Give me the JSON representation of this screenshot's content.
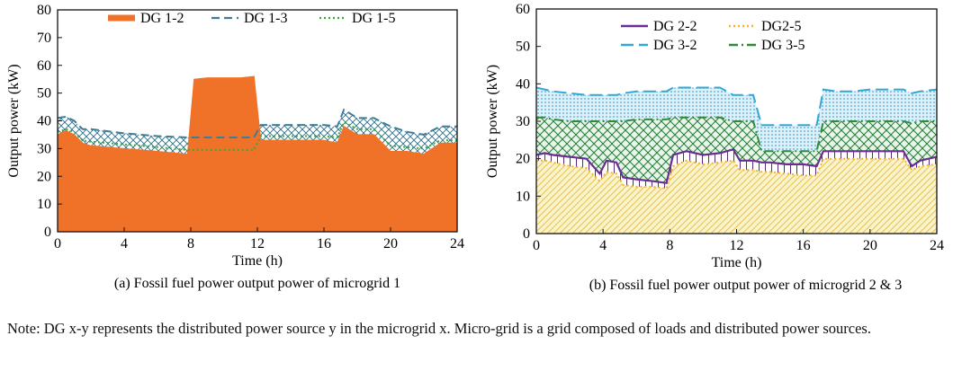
{
  "chart_data": [
    {
      "type": "area",
      "caption": "(a) Fossil fuel power output power of microgrid 1",
      "xlabel": "Time (h)",
      "ylabel": "Output power (kW)",
      "xlim": [
        0,
        24
      ],
      "ylim": [
        0,
        80
      ],
      "xticks": [
        0,
        4,
        8,
        12,
        16,
        20,
        24
      ],
      "yticks": [
        0,
        10,
        20,
        30,
        40,
        50,
        60,
        70,
        80
      ],
      "legend_position": "top",
      "grid": false,
      "x": [
        0,
        0.5,
        1,
        1.5,
        2,
        4,
        6,
        7.8,
        8.2,
        9,
        10,
        11,
        11.8,
        12.2,
        13,
        14,
        15,
        16,
        16.8,
        17.2,
        18,
        19,
        20,
        21,
        22,
        23,
        24
      ],
      "series": [
        {
          "name": "DG 1-2",
          "style": "solid-filled",
          "color": "#F07229",
          "values": [
            35,
            36.5,
            35,
            32,
            31,
            30,
            29,
            28,
            55,
            55.5,
            55.5,
            55.5,
            56,
            33,
            33,
            33,
            33,
            33,
            32,
            38,
            35,
            35,
            29,
            29,
            28,
            32,
            32
          ]
        },
        {
          "name": "DG 1-3",
          "style": "dashed",
          "color": "#3D7E96",
          "values": [
            41,
            41.5,
            40,
            37,
            37,
            35.5,
            34.5,
            34,
            34,
            34,
            34,
            34,
            34,
            38.5,
            38.5,
            38.5,
            38.5,
            38.5,
            38,
            44,
            41,
            41,
            38,
            36,
            35,
            38,
            38
          ]
        },
        {
          "name": "DG 1-5",
          "style": "dotted",
          "color": "#38A937",
          "values": [
            36,
            37,
            36,
            33,
            32.5,
            31.5,
            30.5,
            29.5,
            29.5,
            29.5,
            29.5,
            29.5,
            29.5,
            34.5,
            34.5,
            34.5,
            34.5,
            34.5,
            34,
            39.5,
            37,
            37,
            31,
            30.5,
            30,
            33,
            33
          ]
        }
      ]
    },
    {
      "type": "area",
      "caption": "(b) Fossil fuel power output power of microgrid 2 & 3",
      "xlabel": "Time (h)",
      "ylabel": "Output power (kW)",
      "xlim": [
        0,
        24
      ],
      "ylim": [
        0,
        60
      ],
      "xticks": [
        0,
        4,
        8,
        12,
        16,
        20,
        24
      ],
      "yticks": [
        0,
        10,
        20,
        30,
        40,
        50,
        60
      ],
      "legend_position": "top",
      "grid": false,
      "x": [
        0,
        0.5,
        1,
        2,
        3,
        3.8,
        4.2,
        4.8,
        5.2,
        6,
        7,
        7.8,
        8.2,
        9,
        10,
        11,
        11.8,
        12.2,
        13,
        13.5,
        14,
        15,
        16,
        16.8,
        17.2,
        18,
        19,
        20,
        21,
        22,
        22.5,
        23,
        24
      ],
      "series": [
        {
          "name": "DG 2-2",
          "style": "solid",
          "color": "#6A2E91",
          "values": [
            21,
            21.5,
            21,
            20.5,
            20,
            16,
            19.5,
            19,
            15,
            14.5,
            14,
            13.5,
            21,
            22,
            21,
            21.5,
            22.5,
            19.5,
            19.5,
            19,
            19,
            18.5,
            18.5,
            18,
            22,
            22,
            22,
            22,
            22,
            22,
            18,
            19.5,
            20.5
          ]
        },
        {
          "name": "DG2-5",
          "style": "dotted",
          "color": "#F4B42A",
          "values": [
            19.5,
            19.5,
            19,
            18,
            17.5,
            14,
            16.5,
            16,
            13,
            12.5,
            12.5,
            12,
            18,
            19.5,
            18.5,
            19,
            19.5,
            17,
            17,
            16.5,
            16.5,
            16,
            15.5,
            15.5,
            20,
            20,
            20,
            20,
            20,
            20,
            17,
            18,
            18.5
          ]
        },
        {
          "name": "DG 3-2",
          "style": "dash-long",
          "color": "#33A8D6",
          "values": [
            39,
            38.5,
            38,
            37.5,
            37,
            37,
            37,
            37,
            37.5,
            38,
            38,
            38,
            39,
            39,
            39,
            39,
            37,
            37,
            37,
            29,
            29,
            29,
            29,
            29,
            38.5,
            38,
            38,
            38.5,
            38.5,
            38.5,
            37.5,
            38,
            38.5
          ]
        },
        {
          "name": "DG 3-5",
          "style": "dash-dot",
          "color": "#2E8B3A",
          "values": [
            31,
            31,
            30.5,
            30,
            30,
            30,
            30,
            30,
            30,
            30.5,
            30.5,
            30.5,
            31,
            31,
            31,
            31,
            30,
            30,
            30,
            22,
            22,
            22,
            22,
            22,
            30,
            30,
            30,
            30,
            30,
            30,
            29.5,
            30,
            30
          ]
        }
      ]
    }
  ],
  "note": {
    "text": "Note:  DG x-y represents the distributed power source y in the microgrid x. Micro-grid is a grid composed of loads and distributed power sources."
  }
}
